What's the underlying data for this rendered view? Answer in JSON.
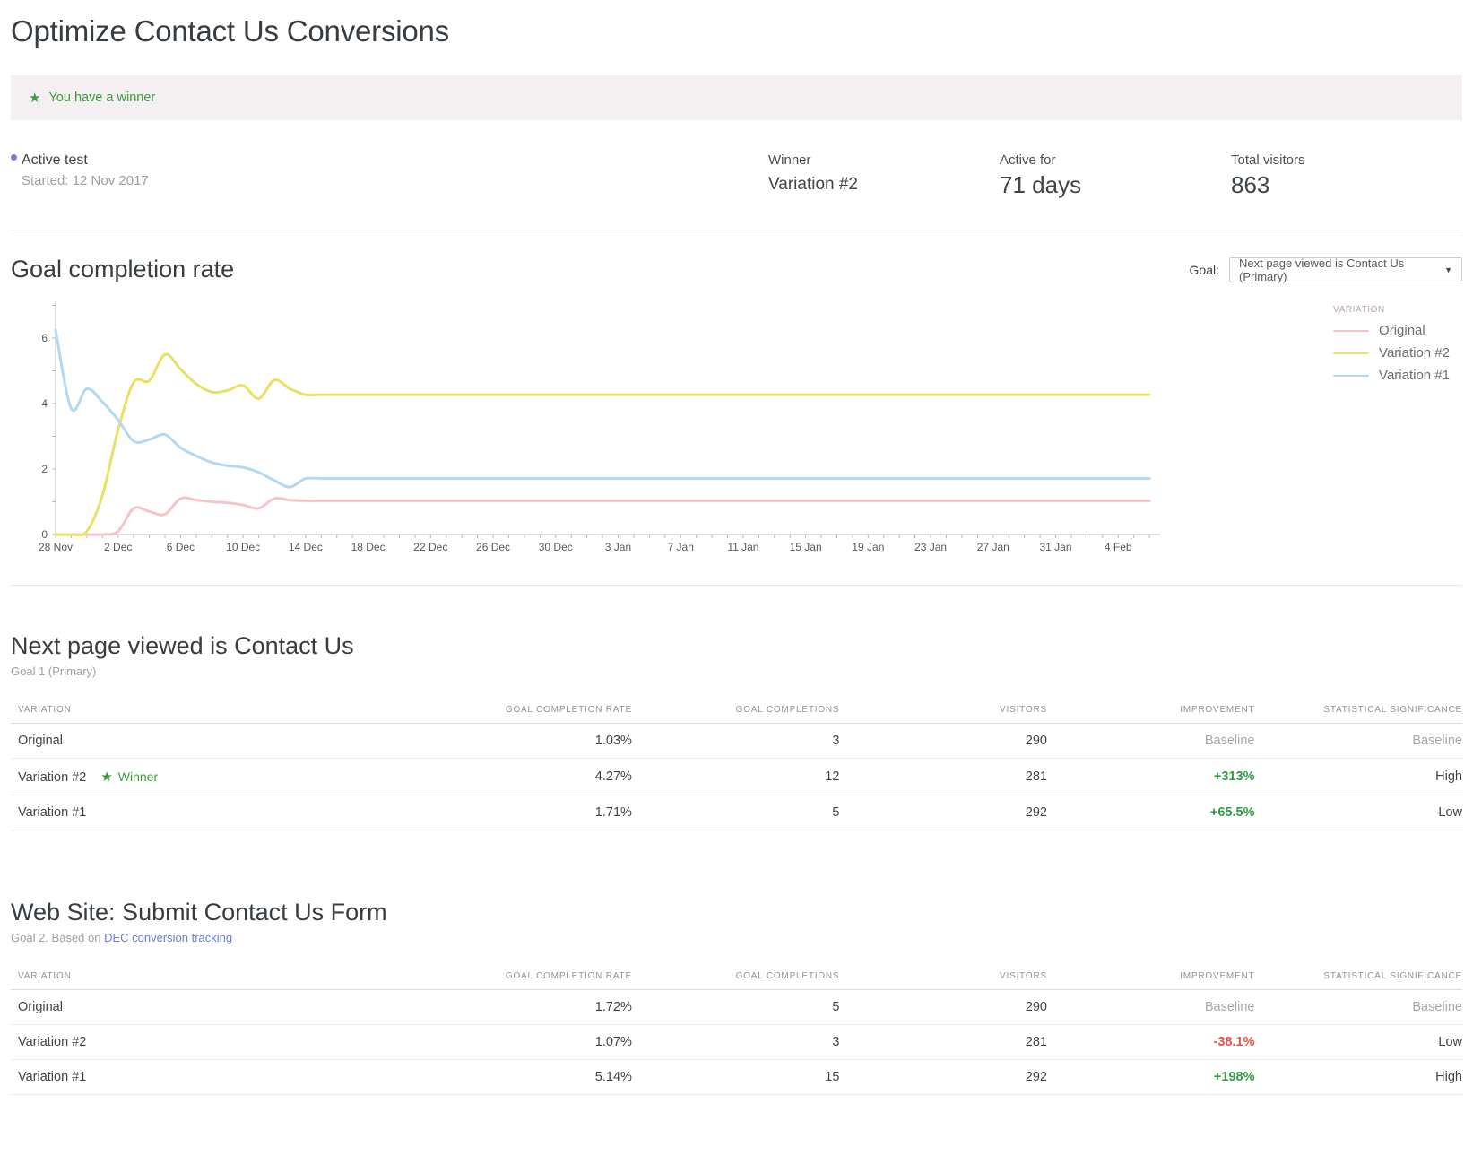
{
  "page_title": "Optimize Contact Us Conversions",
  "icons": {
    "star": "★",
    "dropdown_arrow": "▼"
  },
  "colors": {
    "banner_green": "#3c9d3c",
    "improvement_green": "#2f9e44",
    "improvement_red": "#e8524a",
    "link_blue": "#6b7ddb",
    "active_dot_purple": "#7d75e8",
    "banner_bg": "#f4eff0"
  },
  "banner": {
    "message": "You have a winner"
  },
  "summary": {
    "status_label": "Active test",
    "status_detail": "Started: 12 Nov 2017",
    "stats": [
      {
        "label": "Winner",
        "value": "Variation #2"
      },
      {
        "label": "Active for",
        "value": "71 days"
      },
      {
        "label": "Total visitors",
        "value": "863"
      }
    ]
  },
  "chart_section": {
    "title": "Goal completion rate",
    "goal_label": "Goal:",
    "goal_selected": "Next page viewed is Contact Us (Primary)"
  },
  "chart_data": {
    "type": "line",
    "title": "Goal completion rate",
    "ylabel": "",
    "xlabel": "",
    "ylim": [
      0,
      7.1
    ],
    "y_ticks": [
      0,
      2,
      4,
      6
    ],
    "grid": false,
    "legend_title": "VARIATION",
    "legend_position": "right",
    "x_unit": "day",
    "x_start": "28 Nov",
    "x_tick_every_days": 4,
    "x_tick_labels": [
      "28 Nov",
      "2 Dec",
      "6 Dec",
      "10 Dec",
      "14 Dec",
      "18 Dec",
      "22 Dec",
      "26 Dec",
      "30 Dec",
      "3 Jan",
      "7 Jan",
      "11 Jan",
      "15 Jan",
      "19 Jan",
      "23 Jan",
      "27 Jan",
      "31 Jan",
      "4 Feb"
    ],
    "series": [
      {
        "name": "Original",
        "color": "#f5c4c8",
        "final_value": 1.03,
        "values": [
          0,
          0,
          0,
          0,
          0.1,
          0.8,
          0.7,
          0.62,
          1.1,
          1.05,
          1,
          0.97,
          0.9,
          0.8,
          1.1,
          1.05,
          1.03,
          1.03,
          1.03,
          1.03,
          1.03,
          1.03,
          1.03,
          1.03,
          1.03,
          1.03,
          1.03,
          1.03,
          1.03,
          1.03,
          1.03,
          1.03,
          1.03,
          1.03,
          1.03,
          1.03,
          1.03,
          1.03,
          1.03,
          1.03,
          1.03,
          1.03,
          1.03,
          1.03,
          1.03,
          1.03,
          1.03,
          1.03,
          1.03,
          1.03,
          1.03,
          1.03,
          1.03,
          1.03,
          1.03,
          1.03,
          1.03,
          1.03,
          1.03,
          1.03,
          1.03,
          1.03,
          1.03,
          1.03,
          1.03,
          1.03,
          1.03,
          1.03,
          1.03,
          1.03,
          1.03
        ]
      },
      {
        "name": "Variation #2",
        "color": "#e9e164",
        "final_value": 4.27,
        "values": [
          0,
          0,
          0.1,
          1.2,
          3.2,
          4.65,
          4.7,
          5.5,
          5.05,
          4.6,
          4.35,
          4.4,
          4.55,
          4.15,
          4.72,
          4.45,
          4.27,
          4.27,
          4.27,
          4.27,
          4.27,
          4.27,
          4.27,
          4.27,
          4.27,
          4.27,
          4.27,
          4.27,
          4.27,
          4.27,
          4.27,
          4.27,
          4.27,
          4.27,
          4.27,
          4.27,
          4.27,
          4.27,
          4.27,
          4.27,
          4.27,
          4.27,
          4.27,
          4.27,
          4.27,
          4.27,
          4.27,
          4.27,
          4.27,
          4.27,
          4.27,
          4.27,
          4.27,
          4.27,
          4.27,
          4.27,
          4.27,
          4.27,
          4.27,
          4.27,
          4.27,
          4.27,
          4.27,
          4.27,
          4.27,
          4.27,
          4.27,
          4.27,
          4.27,
          4.27,
          4.27
        ]
      },
      {
        "name": "Variation #1",
        "color": "#b3d8f3",
        "final_value": 1.71,
        "values": [
          6.25,
          3.85,
          4.45,
          4.05,
          3.5,
          2.85,
          2.9,
          3.05,
          2.65,
          2.4,
          2.2,
          2.1,
          2.05,
          1.9,
          1.65,
          1.45,
          1.71,
          1.71,
          1.71,
          1.71,
          1.71,
          1.71,
          1.71,
          1.71,
          1.71,
          1.71,
          1.71,
          1.71,
          1.71,
          1.71,
          1.71,
          1.71,
          1.71,
          1.71,
          1.71,
          1.71,
          1.71,
          1.71,
          1.71,
          1.71,
          1.71,
          1.71,
          1.71,
          1.71,
          1.71,
          1.71,
          1.71,
          1.71,
          1.71,
          1.71,
          1.71,
          1.71,
          1.71,
          1.71,
          1.71,
          1.71,
          1.71,
          1.71,
          1.71,
          1.71,
          1.71,
          1.71,
          1.71,
          1.71,
          1.71,
          1.71,
          1.71,
          1.71,
          1.71,
          1.71,
          1.71
        ]
      }
    ]
  },
  "goal1": {
    "title": "Next page viewed is Contact Us",
    "subtitle": "Goal 1 (Primary)",
    "columns": [
      "VARIATION",
      "GOAL COMPLETION RATE",
      "GOAL COMPLETIONS",
      "VISITORS",
      "IMPROVEMENT",
      "STATISTICAL SIGNIFICANCE"
    ],
    "rows": [
      {
        "variation": "Original",
        "rate": "1.03%",
        "completions": "3",
        "visitors": "290",
        "improvement": "Baseline",
        "significance": "Baseline"
      },
      {
        "variation": "Variation #2",
        "winner_badge": "Winner",
        "rate": "4.27%",
        "completions": "12",
        "visitors": "281",
        "improvement": "+313%",
        "significance": "High"
      },
      {
        "variation": "Variation #1",
        "rate": "1.71%",
        "completions": "5",
        "visitors": "292",
        "improvement": "+65.5%",
        "significance": "Low"
      }
    ]
  },
  "goal2": {
    "title": "Web Site: Submit Contact Us Form",
    "subtitle_prefix": "Goal 2. Based on ",
    "link_text": "DEC conversion tracking",
    "columns": [
      "VARIATION",
      "GOAL COMPLETION RATE",
      "GOAL COMPLETIONS",
      "VISITORS",
      "IMPROVEMENT",
      "STATISTICAL SIGNIFICANCE"
    ],
    "rows": [
      {
        "variation": "Original",
        "rate": "1.72%",
        "completions": "5",
        "visitors": "290",
        "improvement": "Baseline",
        "significance": "Baseline"
      },
      {
        "variation": "Variation #2",
        "rate": "1.07%",
        "completions": "3",
        "visitors": "281",
        "improvement": "-38.1%",
        "significance": "Low"
      },
      {
        "variation": "Variation #1",
        "rate": "5.14%",
        "completions": "15",
        "visitors": "292",
        "improvement": "+198%",
        "significance": "High"
      }
    ]
  }
}
